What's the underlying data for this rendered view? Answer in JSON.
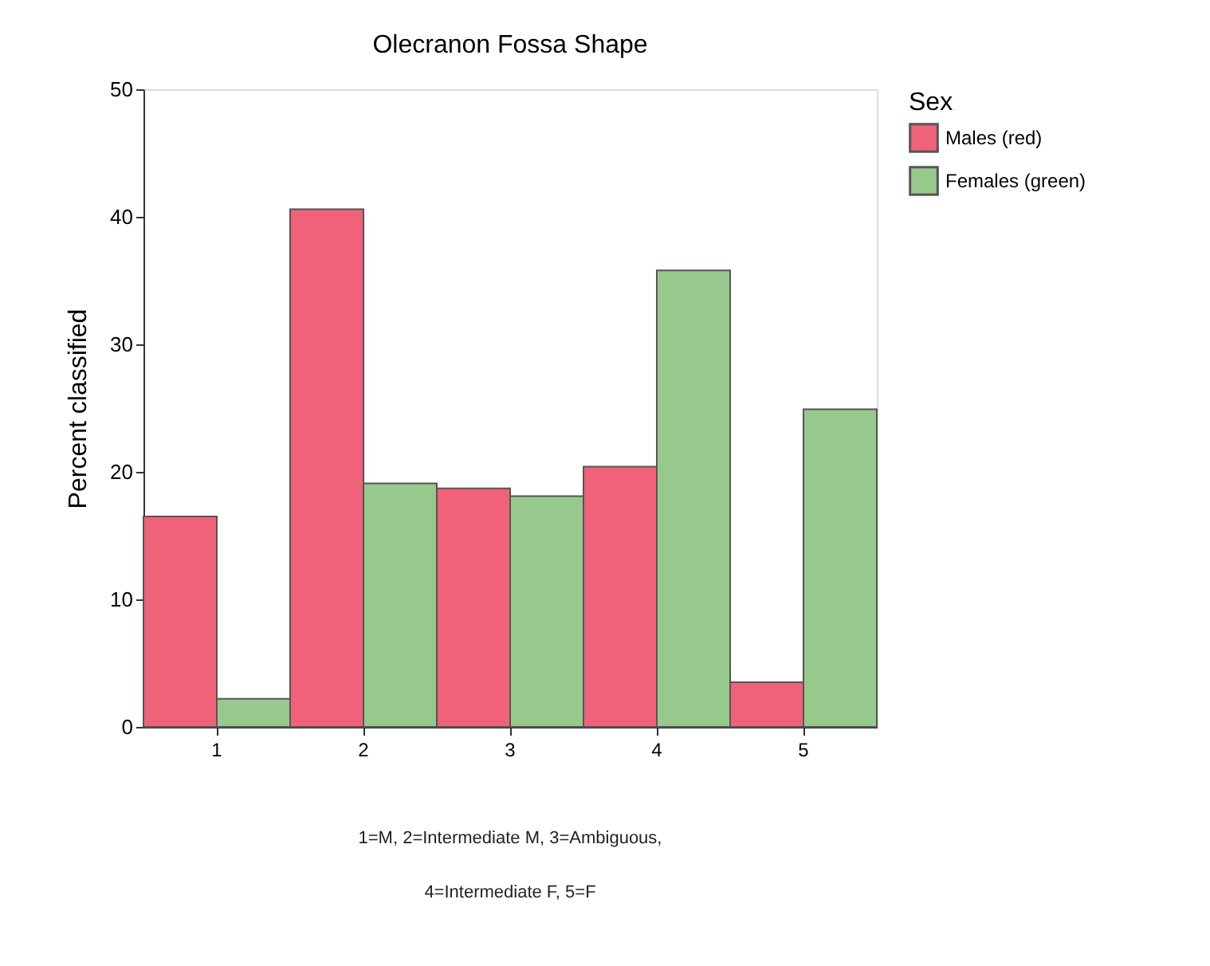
{
  "chart_data": {
    "type": "bar",
    "title": "Olecranon Fossa Shape",
    "ylabel": "Percent classified",
    "legend_title": "Sex",
    "categories": [
      "1",
      "2",
      "3",
      "4",
      "5"
    ],
    "series": [
      {
        "name": "Males (red)",
        "color": "#f0627a",
        "values": [
          16.5,
          40.6,
          18.7,
          20.4,
          3.5
        ]
      },
      {
        "name": "Females (green)",
        "color": "#98c98c",
        "values": [
          2.2,
          19.1,
          18.1,
          35.8,
          24.9
        ]
      }
    ],
    "ylim": [
      0,
      50
    ],
    "yticks": [
      0,
      10,
      20,
      30,
      40,
      50
    ],
    "grid": false,
    "legend": "right",
    "annotations": [
      "1=M, 2=Intermediate M, 3=Ambiguous,",
      "4=Intermediate F, 5=F"
    ]
  }
}
